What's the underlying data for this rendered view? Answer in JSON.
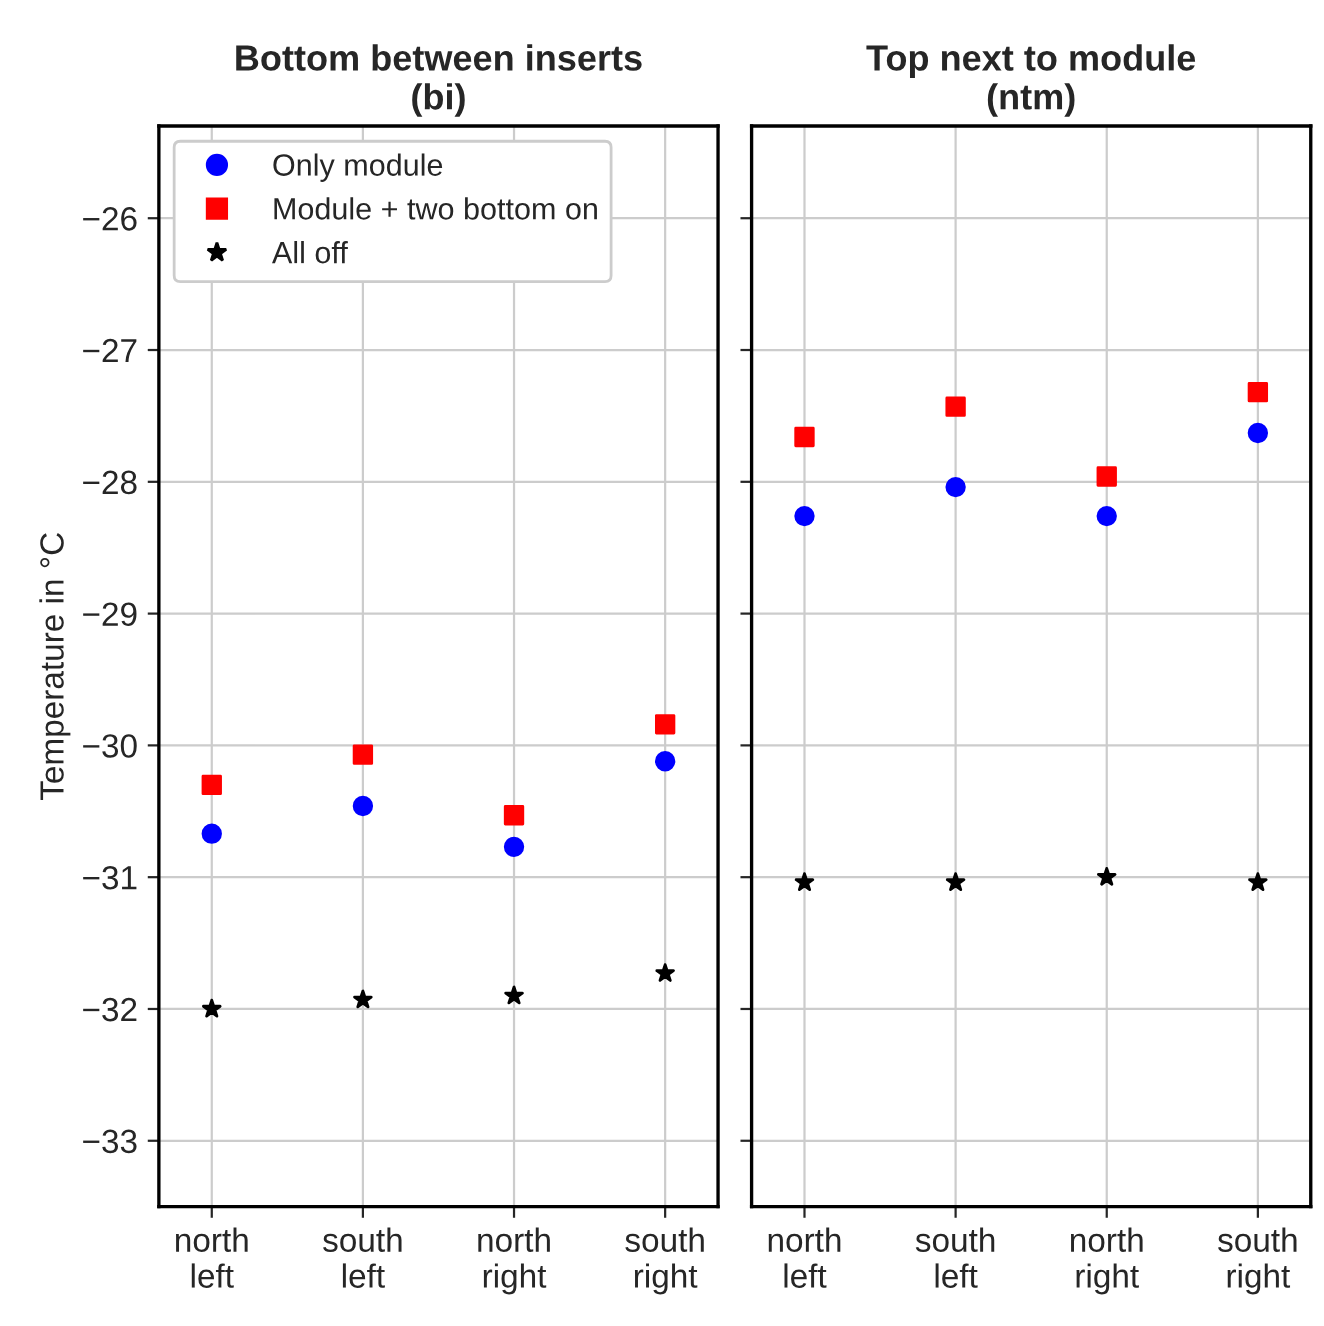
{
  "chart_data": [
    {
      "type": "scatter",
      "title": "Bottom between inserts\n(bi)",
      "ylabel": "Temperature in °C",
      "categories": [
        "north\nleft",
        "south\nleft",
        "north\nright",
        "south\nright"
      ],
      "ylim": [
        -33.5,
        -25.3
      ],
      "yticks": [
        {
          "value": -33,
          "label": "−33"
        },
        {
          "value": -32,
          "label": "−32"
        },
        {
          "value": -31,
          "label": "−31"
        },
        {
          "value": -30,
          "label": "−30"
        },
        {
          "value": -29,
          "label": "−29"
        },
        {
          "value": -28,
          "label": "−28"
        },
        {
          "value": -27,
          "label": "−27"
        },
        {
          "value": -26,
          "label": "−26"
        }
      ],
      "grid": true,
      "legend": "top left",
      "series": [
        {
          "name": "Only module",
          "color": "#0000ff",
          "marker": "circle",
          "values": [
            -30.67,
            -30.46,
            -30.77,
            -30.12
          ]
        },
        {
          "name": "Module + two bottom on",
          "color": "#ff0000",
          "marker": "square",
          "values": [
            -30.3,
            -30.07,
            -30.53,
            -29.84
          ]
        },
        {
          "name": "All off",
          "color": "#000000",
          "marker": "star",
          "values": [
            -32.0,
            -31.93,
            -31.9,
            -31.73
          ]
        }
      ]
    },
    {
      "type": "scatter",
      "title": "Top next to module\n(ntm)",
      "categories": [
        "north\nleft",
        "south\nleft",
        "north\nright",
        "south\nright"
      ],
      "ylim": [
        -33.5,
        -25.3
      ],
      "yticks": [
        -33,
        -32,
        -31,
        -30,
        -29,
        -28,
        -27,
        -26
      ],
      "tick_labels": "x",
      "grid": true,
      "series": [
        {
          "color": "#0000ff",
          "marker": "circle",
          "values": [
            -28.26,
            -28.04,
            -28.26,
            -27.63
          ]
        },
        {
          "color": "#ff0000",
          "marker": "square",
          "values": [
            -27.66,
            -27.43,
            -27.96,
            -27.32
          ]
        },
        {
          "color": "#000000",
          "marker": "star",
          "values": [
            -31.04,
            -31.04,
            -31.0,
            -31.04
          ]
        }
      ]
    }
  ]
}
